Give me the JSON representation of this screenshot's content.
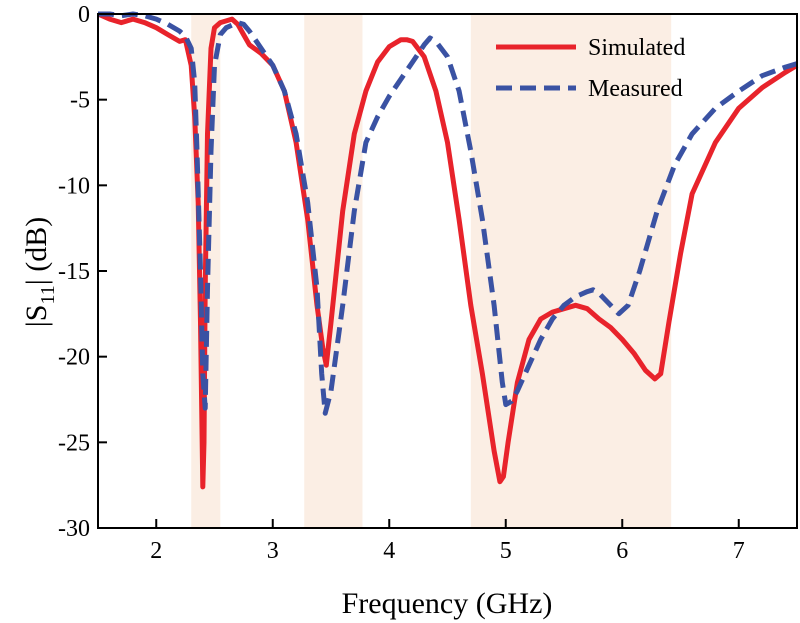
{
  "chart_data": {
    "type": "line",
    "title": "",
    "xlabel": "Frequency (GHz)",
    "ylabel_prefix": "|S",
    "ylabel_sub": "11",
    "ylabel_suffix": "| (dB)",
    "xlim": [
      1.5,
      7.5
    ],
    "ylim": [
      -30,
      0
    ],
    "xticks": [
      2,
      3,
      4,
      5,
      6,
      7
    ],
    "yticks": [
      0,
      -5,
      -10,
      -15,
      -20,
      -25,
      -30
    ],
    "xtick_labels": [
      "2",
      "3",
      "4",
      "5",
      "6",
      "7"
    ],
    "ytick_labels": [
      "0",
      "-5",
      "-10",
      "-15",
      "-20",
      "-25",
      "-30"
    ],
    "grid": false,
    "legend_position": "top-right",
    "bands": [
      {
        "x0": 2.3,
        "x1": 2.55
      },
      {
        "x0": 3.27,
        "x1": 3.77
      },
      {
        "x0": 4.7,
        "x1": 6.42
      }
    ],
    "band_color": "#fbeee4",
    "series": [
      {
        "name": "Simulated",
        "color": "#e8232b",
        "dash": "solid",
        "x": [
          1.5,
          1.6,
          1.7,
          1.8,
          1.9,
          2.0,
          2.1,
          2.2,
          2.25,
          2.3,
          2.33,
          2.36,
          2.38,
          2.4,
          2.41,
          2.42,
          2.44,
          2.47,
          2.5,
          2.55,
          2.6,
          2.65,
          2.7,
          2.75,
          2.8,
          2.9,
          3.0,
          3.1,
          3.2,
          3.3,
          3.38,
          3.43,
          3.46,
          3.5,
          3.6,
          3.7,
          3.8,
          3.9,
          4.0,
          4.1,
          4.15,
          4.2,
          4.3,
          4.4,
          4.5,
          4.6,
          4.7,
          4.8,
          4.9,
          4.95,
          4.98,
          5.02,
          5.1,
          5.2,
          5.3,
          5.4,
          5.5,
          5.6,
          5.7,
          5.8,
          5.9,
          6.0,
          6.1,
          6.2,
          6.28,
          6.33,
          6.4,
          6.5,
          6.6,
          6.8,
          7.0,
          7.2,
          7.4,
          7.5
        ],
        "y": [
          0,
          -0.3,
          -0.5,
          -0.3,
          -0.5,
          -0.8,
          -1.2,
          -1.6,
          -1.5,
          -3.0,
          -6.0,
          -11.0,
          -18.0,
          -27.6,
          -25.0,
          -16.0,
          -7.0,
          -2.0,
          -0.8,
          -0.5,
          -0.4,
          -0.3,
          -0.6,
          -1.2,
          -1.8,
          -2.3,
          -3.0,
          -4.5,
          -7.5,
          -12.0,
          -17.0,
          -19.5,
          -20.5,
          -18.0,
          -11.5,
          -7.0,
          -4.5,
          -2.8,
          -1.9,
          -1.5,
          -1.5,
          -1.6,
          -2.5,
          -4.5,
          -7.5,
          -12.0,
          -17.0,
          -21.0,
          -25.5,
          -27.3,
          -27.0,
          -25.0,
          -21.5,
          -19.0,
          -17.8,
          -17.4,
          -17.2,
          -17.0,
          -17.2,
          -17.8,
          -18.3,
          -19.0,
          -19.8,
          -20.8,
          -21.3,
          -21.0,
          -18.0,
          -14.0,
          -10.5,
          -7.5,
          -5.5,
          -4.3,
          -3.4,
          -3.0
        ]
      },
      {
        "name": "Measured",
        "color": "#3a52a3",
        "dash": "dashed",
        "x": [
          1.5,
          1.6,
          1.7,
          1.8,
          1.9,
          2.0,
          2.1,
          2.2,
          2.25,
          2.3,
          2.33,
          2.35,
          2.38,
          2.4,
          2.42,
          2.44,
          2.47,
          2.5,
          2.55,
          2.6,
          2.7,
          2.75,
          2.8,
          2.9,
          3.0,
          3.1,
          3.2,
          3.3,
          3.38,
          3.42,
          3.45,
          3.5,
          3.6,
          3.7,
          3.8,
          3.9,
          4.0,
          4.1,
          4.2,
          4.3,
          4.35,
          4.4,
          4.5,
          4.6,
          4.7,
          4.8,
          4.9,
          4.97,
          5.0,
          5.05,
          5.1,
          5.2,
          5.3,
          5.4,
          5.5,
          5.6,
          5.7,
          5.75,
          5.8,
          5.9,
          5.97,
          6.05,
          6.15,
          6.3,
          6.45,
          6.6,
          6.8,
          7.0,
          7.2,
          7.4,
          7.5
        ],
        "y": [
          0,
          0,
          -0.1,
          0,
          -0.1,
          -0.3,
          -0.6,
          -1.0,
          -1.3,
          -2.0,
          -4.0,
          -8.0,
          -15.0,
          -21.0,
          -23.0,
          -16.0,
          -8.0,
          -3.0,
          -1.2,
          -0.8,
          -0.5,
          -0.6,
          -1.0,
          -2.0,
          -3.0,
          -4.5,
          -7.0,
          -11.0,
          -16.0,
          -21.0,
          -23.3,
          -22.0,
          -17.0,
          -11.5,
          -7.5,
          -6.0,
          -4.8,
          -3.8,
          -2.8,
          -1.8,
          -1.4,
          -1.6,
          -2.5,
          -4.5,
          -8.0,
          -12.0,
          -17.0,
          -21.5,
          -22.8,
          -22.6,
          -22.0,
          -20.5,
          -19.0,
          -17.8,
          -17.0,
          -16.5,
          -16.2,
          -16.1,
          -16.3,
          -17.0,
          -17.5,
          -17.0,
          -15.0,
          -11.5,
          -8.8,
          -7.0,
          -5.5,
          -4.5,
          -3.6,
          -3.1,
          -2.9
        ]
      }
    ]
  }
}
